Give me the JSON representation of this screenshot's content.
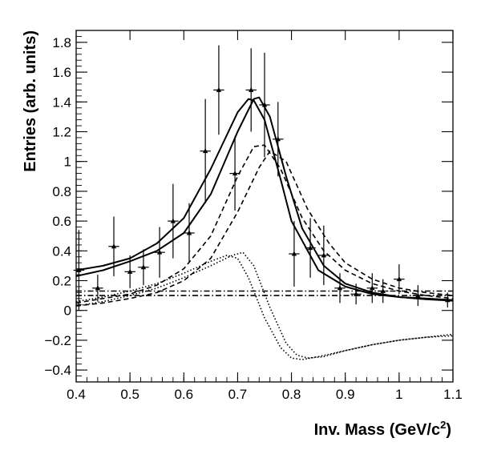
{
  "chart_data": {
    "type": "line",
    "title": "",
    "xlabel": "Inv. Mass (GeV/c",
    "xlabel_sup": "2",
    "xlabel_end": ")",
    "ylabel": "Entries (arb. units)",
    "xlim": [
      0.4,
      1.1
    ],
    "ylim": [
      -0.48,
      1.88
    ],
    "grid": false,
    "legend": "none",
    "x_ticks": [
      0.4,
      0.5,
      0.6,
      0.7,
      0.8,
      0.9,
      1.0,
      1.1
    ],
    "x_tick_labels": [
      "0.4",
      "0.5",
      "0.6",
      "0.7",
      "0.8",
      "0.9",
      "1",
      "1.1"
    ],
    "y_ticks": [
      -0.4,
      -0.2,
      0,
      0.2,
      0.4,
      0.6,
      0.8,
      1,
      1.2,
      1.4,
      1.6,
      1.8
    ],
    "y_tick_labels": [
      "−0.4",
      "−0.2",
      "0",
      "0.2",
      "0.4",
      "0.6",
      "0.8",
      "1",
      "1.2",
      "1.4",
      "1.6",
      "1.8"
    ],
    "data_points": {
      "x": [
        0.405,
        0.44,
        0.47,
        0.5,
        0.525,
        0.555,
        0.58,
        0.61,
        0.64,
        0.665,
        0.695,
        0.725,
        0.75,
        0.775,
        0.805,
        0.835,
        0.86,
        0.89,
        0.92,
        0.95,
        0.97,
        1.0,
        1.035,
        1.09
      ],
      "y": [
        0.27,
        0.15,
        0.43,
        0.26,
        0.29,
        0.39,
        0.6,
        0.52,
        1.07,
        1.48,
        0.92,
        1.48,
        1.38,
        1.15,
        0.38,
        0.42,
        0.37,
        0.15,
        0.11,
        0.15,
        0.13,
        0.21,
        0.1,
        0.07
      ],
      "yerr": [
        0.27,
        0.09,
        0.2,
        0.11,
        0.12,
        0.17,
        0.25,
        0.2,
        0.35,
        0.3,
        0.25,
        0.28,
        0.35,
        0.25,
        0.22,
        0.2,
        0.2,
        0.1,
        0.07,
        0.1,
        0.08,
        0.1,
        0.07,
        0.05
      ],
      "xerr": [
        0.01,
        0.01,
        0.01,
        0.01,
        0.01,
        0.01,
        0.01,
        0.01,
        0.01,
        0.01,
        0.01,
        0.01,
        0.01,
        0.01,
        0.01,
        0.01,
        0.01,
        0.01,
        0.01,
        0.01,
        0.01,
        0.01,
        0.01,
        0.01
      ]
    },
    "series": [
      {
        "style": "solid",
        "color": "#000000",
        "x": [
          0.4,
          0.45,
          0.5,
          0.55,
          0.6,
          0.65,
          0.7,
          0.72,
          0.73,
          0.75,
          0.78,
          0.8,
          0.85,
          0.9,
          0.95,
          1.0,
          1.05,
          1.1
        ],
        "y": [
          0.27,
          0.3,
          0.35,
          0.45,
          0.62,
          0.95,
          1.33,
          1.42,
          1.41,
          1.28,
          0.88,
          0.6,
          0.27,
          0.16,
          0.11,
          0.09,
          0.08,
          0.07
        ]
      },
      {
        "style": "solid",
        "color": "#000000",
        "x": [
          0.4,
          0.45,
          0.5,
          0.55,
          0.6,
          0.65,
          0.7,
          0.73,
          0.74,
          0.76,
          0.79,
          0.82,
          0.86,
          0.9,
          0.95,
          1.0,
          1.05,
          1.1
        ],
        "y": [
          0.23,
          0.27,
          0.33,
          0.4,
          0.52,
          0.78,
          1.2,
          1.42,
          1.43,
          1.3,
          0.9,
          0.55,
          0.3,
          0.18,
          0.12,
          0.09,
          0.075,
          0.065
        ]
      },
      {
        "style": "dashed",
        "color": "#000000",
        "x": [
          0.4,
          0.45,
          0.5,
          0.55,
          0.6,
          0.65,
          0.7,
          0.73,
          0.75,
          0.78,
          0.82,
          0.86,
          0.9,
          0.95,
          1.0,
          1.05,
          1.1
        ],
        "y": [
          0.05,
          0.08,
          0.11,
          0.17,
          0.28,
          0.5,
          0.9,
          1.1,
          1.11,
          0.95,
          0.62,
          0.4,
          0.27,
          0.18,
          0.13,
          0.1,
          0.08
        ]
      },
      {
        "style": "dashed",
        "color": "#000000",
        "x": [
          0.4,
          0.45,
          0.5,
          0.55,
          0.6,
          0.65,
          0.7,
          0.74,
          0.76,
          0.79,
          0.83,
          0.87,
          0.9,
          0.95,
          1.0,
          1.05,
          1.1
        ],
        "y": [
          0.03,
          0.05,
          0.08,
          0.12,
          0.2,
          0.35,
          0.66,
          0.96,
          1.07,
          1.0,
          0.68,
          0.45,
          0.32,
          0.21,
          0.15,
          0.12,
          0.1
        ]
      },
      {
        "style": "dotted",
        "color": "#000000",
        "x": [
          0.4,
          0.45,
          0.5,
          0.55,
          0.6,
          0.65,
          0.68,
          0.7,
          0.72,
          0.75,
          0.78,
          0.8,
          0.82,
          0.85,
          0.9,
          0.95,
          1.0,
          1.05,
          1.1
        ],
        "y": [
          0.06,
          0.09,
          0.13,
          0.18,
          0.25,
          0.33,
          0.37,
          0.35,
          0.22,
          -0.05,
          -0.25,
          -0.32,
          -0.33,
          -0.31,
          -0.27,
          -0.23,
          -0.2,
          -0.18,
          -0.17
        ]
      },
      {
        "style": "dotted",
        "color": "#000000",
        "x": [
          0.4,
          0.45,
          0.5,
          0.55,
          0.6,
          0.65,
          0.69,
          0.71,
          0.73,
          0.76,
          0.79,
          0.81,
          0.83,
          0.86,
          0.9,
          0.95,
          1.0,
          1.05,
          1.1
        ],
        "y": [
          0.03,
          0.06,
          0.1,
          0.15,
          0.22,
          0.3,
          0.37,
          0.39,
          0.3,
          0.02,
          -0.22,
          -0.3,
          -0.32,
          -0.31,
          -0.27,
          -0.23,
          -0.2,
          -0.18,
          -0.16
        ]
      },
      {
        "style": "dashdot",
        "color": "#000000",
        "x": [
          0.4,
          1.1
        ],
        "y": [
          0.13,
          0.13
        ]
      },
      {
        "style": "dashdot",
        "color": "#000000",
        "x": [
          0.4,
          1.1
        ],
        "y": [
          0.1,
          0.1
        ]
      }
    ]
  }
}
